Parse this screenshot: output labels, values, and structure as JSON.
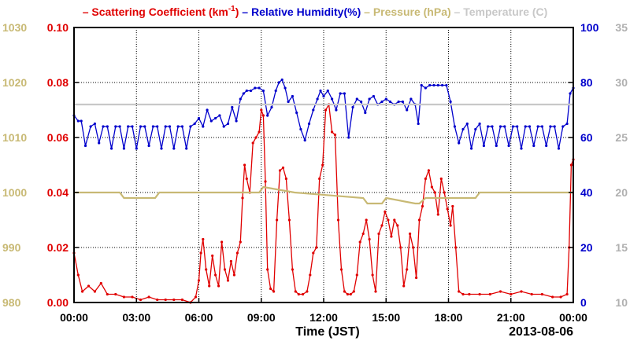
{
  "chart_data": {
    "type": "line",
    "xlabel": "Time (JST)",
    "date_label": "2013-08-06",
    "x_ticks": [
      "00:00",
      "03:00",
      "06:00",
      "09:00",
      "12:00",
      "15:00",
      "18:00",
      "21:00",
      "00:00"
    ],
    "grid": true,
    "legend_placement": "top",
    "axes": {
      "left_outer": {
        "label": "Pressure (hPa)",
        "range": [
          980,
          1030
        ],
        "ticks": [
          "980",
          "990",
          "1000",
          "1010",
          "1020",
          "1030"
        ],
        "color": "#c8b974"
      },
      "left_inner": {
        "label": "Scattering Coefficient (km-1)",
        "range": [
          0.0,
          0.1
        ],
        "ticks": [
          "0.00",
          "0.02",
          "0.04",
          "0.06",
          "0.08",
          "0.10"
        ],
        "color": "#e00000"
      },
      "right_inner": {
        "label": "Relative Humidity(%)",
        "range": [
          0,
          100
        ],
        "ticks": [
          "0",
          "20",
          "40",
          "60",
          "80",
          "100"
        ],
        "color": "#0000cc"
      },
      "right_outer": {
        "label": "Temperature (C)",
        "range": [
          10,
          35
        ],
        "ticks": [
          "10",
          "15",
          "20",
          "25",
          "30",
          "35"
        ],
        "color": "#b0b0b0"
      }
    },
    "legend": [
      {
        "prefix": "– ",
        "text": "Scattering Coefficient (km",
        "sup": "-1",
        "suffix": ")",
        "color": "#e00000"
      },
      {
        "prefix": " – ",
        "text": "Relative Humidity(%)",
        "color": "#0000cc"
      },
      {
        "prefix": " – ",
        "text": "Pressure (hPa)",
        "color": "#c8b974"
      },
      {
        "prefix": " – ",
        "text": "Temperature (C)",
        "color": "#c8c8c8"
      }
    ],
    "series": [
      {
        "name": "Scattering Coefficient",
        "axis": "left_inner",
        "color": "#e00000",
        "markers": true,
        "x_hours": [
          0.0,
          0.2,
          0.4,
          0.7,
          1.0,
          1.3,
          1.6,
          2.0,
          2.4,
          2.8,
          3.2,
          3.6,
          4.0,
          4.4,
          4.8,
          5.2,
          5.6,
          5.85,
          6.0,
          6.1,
          6.2,
          6.35,
          6.5,
          6.65,
          6.8,
          6.95,
          7.1,
          7.25,
          7.4,
          7.55,
          7.7,
          7.85,
          8.0,
          8.1,
          8.2,
          8.3,
          8.45,
          8.6,
          8.75,
          8.9,
          9.0,
          9.1,
          9.2,
          9.3,
          9.45,
          9.6,
          9.75,
          9.9,
          10.05,
          10.2,
          10.35,
          10.5,
          10.65,
          10.8,
          11.0,
          11.2,
          11.35,
          11.5,
          11.65,
          11.8,
          11.95,
          12.1,
          12.25,
          12.4,
          12.55,
          12.7,
          12.85,
          13.0,
          13.15,
          13.3,
          13.45,
          13.6,
          13.75,
          13.9,
          14.05,
          14.2,
          14.35,
          14.5,
          14.65,
          14.8,
          14.95,
          15.1,
          15.25,
          15.4,
          15.55,
          15.7,
          15.85,
          16.0,
          16.15,
          16.3,
          16.45,
          16.6,
          16.75,
          16.9,
          17.05,
          17.2,
          17.35,
          17.5,
          17.65,
          17.8,
          17.95,
          18.1,
          18.2,
          18.35,
          18.5,
          18.7,
          19.0,
          19.5,
          20.0,
          20.5,
          21.0,
          21.5,
          22.0,
          22.5,
          23.0,
          23.4,
          23.7,
          23.8,
          23.9,
          24.0
        ],
        "values": [
          0.018,
          0.01,
          0.004,
          0.006,
          0.004,
          0.007,
          0.003,
          0.003,
          0.002,
          0.002,
          0.001,
          0.002,
          0.001,
          0.001,
          0.001,
          0.001,
          0.0,
          0.002,
          0.008,
          0.018,
          0.023,
          0.012,
          0.006,
          0.017,
          0.01,
          0.006,
          0.022,
          0.012,
          0.008,
          0.015,
          0.01,
          0.018,
          0.022,
          0.038,
          0.05,
          0.045,
          0.04,
          0.058,
          0.06,
          0.062,
          0.07,
          0.068,
          0.044,
          0.012,
          0.005,
          0.004,
          0.03,
          0.048,
          0.049,
          0.045,
          0.03,
          0.012,
          0.004,
          0.003,
          0.003,
          0.004,
          0.01,
          0.018,
          0.02,
          0.045,
          0.05,
          0.07,
          0.072,
          0.062,
          0.061,
          0.03,
          0.012,
          0.004,
          0.003,
          0.003,
          0.004,
          0.01,
          0.022,
          0.025,
          0.03,
          0.023,
          0.01,
          0.004,
          0.025,
          0.028,
          0.033,
          0.03,
          0.024,
          0.03,
          0.028,
          0.02,
          0.006,
          0.012,
          0.025,
          0.02,
          0.009,
          0.03,
          0.035,
          0.045,
          0.048,
          0.042,
          0.04,
          0.032,
          0.045,
          0.04,
          0.034,
          0.028,
          0.035,
          0.02,
          0.004,
          0.003,
          0.003,
          0.003,
          0.003,
          0.004,
          0.003,
          0.004,
          0.003,
          0.003,
          0.002,
          0.002,
          0.003,
          0.02,
          0.05,
          0.052
        ]
      },
      {
        "name": "Relative Humidity",
        "axis": "right_inner",
        "color": "#0000cc",
        "markers": true,
        "x_hours": [
          0.0,
          0.2,
          0.35,
          0.55,
          0.8,
          1.0,
          1.2,
          1.4,
          1.6,
          1.8,
          2.0,
          2.2,
          2.4,
          2.6,
          2.8,
          3.0,
          3.2,
          3.4,
          3.6,
          3.8,
          4.0,
          4.2,
          4.4,
          4.6,
          4.8,
          5.0,
          5.2,
          5.4,
          5.6,
          5.8,
          6.0,
          6.2,
          6.4,
          6.6,
          6.8,
          7.0,
          7.2,
          7.4,
          7.6,
          7.8,
          8.0,
          8.15,
          8.3,
          8.5,
          8.7,
          8.9,
          9.1,
          9.3,
          9.5,
          9.7,
          9.85,
          10.0,
          10.15,
          10.3,
          10.5,
          10.7,
          10.9,
          11.1,
          11.3,
          11.5,
          11.7,
          11.85,
          12.0,
          12.2,
          12.4,
          12.6,
          12.8,
          13.0,
          13.2,
          13.4,
          13.6,
          13.8,
          14.0,
          14.2,
          14.4,
          14.6,
          14.8,
          15.0,
          15.2,
          15.4,
          15.6,
          15.8,
          16.0,
          16.2,
          16.4,
          16.55,
          16.7,
          16.9,
          17.1,
          17.3,
          17.5,
          17.7,
          17.9,
          18.1,
          18.3,
          18.5,
          18.7,
          18.9,
          19.1,
          19.3,
          19.5,
          19.7,
          19.9,
          20.1,
          20.3,
          20.5,
          20.7,
          20.9,
          21.1,
          21.3,
          21.5,
          21.7,
          21.9,
          22.1,
          22.3,
          22.5,
          22.7,
          22.9,
          23.1,
          23.3,
          23.5,
          23.7,
          23.85,
          24.0
        ],
        "values": [
          68,
          66,
          66,
          57,
          64,
          65,
          58,
          64,
          64,
          56,
          64,
          64,
          56,
          64,
          64,
          56,
          64,
          64,
          57,
          64,
          64,
          56,
          64,
          64,
          56,
          64,
          64,
          56,
          64,
          65,
          67,
          64,
          70,
          66,
          67,
          68,
          64,
          65,
          71,
          66,
          74,
          76,
          77,
          77,
          78,
          78,
          77,
          68,
          71,
          77,
          80,
          81,
          78,
          73,
          75,
          69,
          63,
          59,
          65,
          70,
          74,
          77,
          75,
          77,
          74,
          70,
          76,
          76,
          60,
          71,
          74,
          73,
          69,
          74,
          75,
          72,
          73,
          74,
          73,
          72,
          73,
          73,
          70,
          74,
          72,
          65,
          79,
          78,
          79,
          79,
          79,
          79,
          79,
          73,
          64,
          58,
          63,
          65,
          56,
          63,
          65,
          57,
          64,
          64,
          57,
          64,
          64,
          57,
          64,
          64,
          56,
          64,
          64,
          57,
          64,
          64,
          57,
          64,
          64,
          56,
          64,
          65,
          76,
          78
        ]
      },
      {
        "name": "Pressure",
        "axis": "left_outer",
        "color": "#c8b974",
        "markers": false,
        "x_hours": [
          0.0,
          2.2,
          2.4,
          3.9,
          4.1,
          8.9,
          9.1,
          10.6,
          13.9,
          14.1,
          14.8,
          15.0,
          16.4,
          16.6,
          16.9,
          19.3,
          19.5,
          24.0
        ],
        "values": [
          1000,
          1000,
          999,
          999,
          1000,
          1000,
          1001,
          1000,
          999,
          998,
          998,
          999,
          998,
          998,
          999,
          999,
          1000,
          1000
        ]
      },
      {
        "name": "Temperature",
        "axis": "right_outer",
        "color": "#c8c8c8",
        "markers": false,
        "x_hours": [
          0.0,
          24.0
        ],
        "values": [
          28,
          28
        ]
      }
    ]
  }
}
